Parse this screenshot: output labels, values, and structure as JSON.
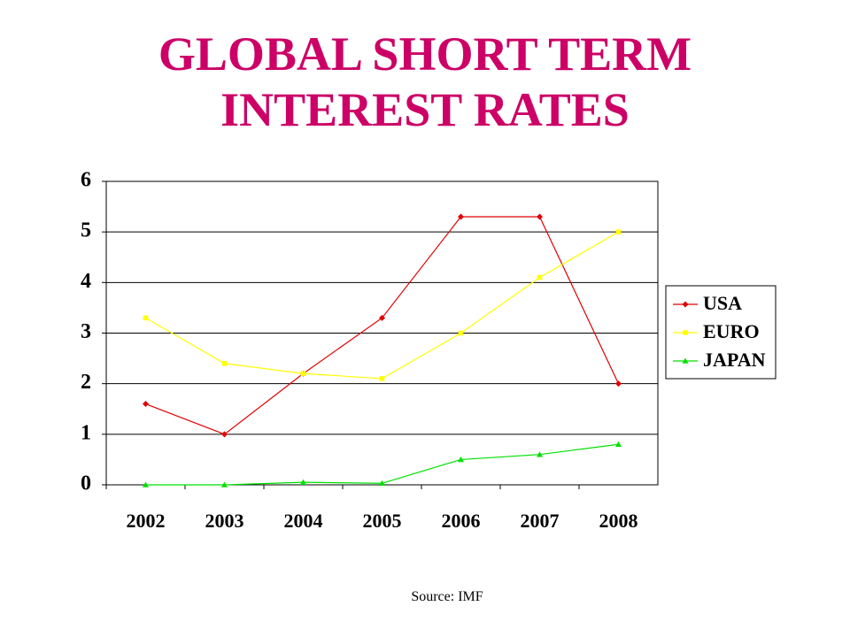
{
  "chart_data": {
    "type": "line",
    "title": "GLOBAL SHORT TERM INTEREST RATES",
    "source": "Source: IMF",
    "categories": [
      "2002",
      "2003",
      "2004",
      "2005",
      "2006",
      "2007",
      "2008"
    ],
    "series": [
      {
        "name": "USA",
        "color": "#e00000",
        "marker": "diamond",
        "values": [
          1.6,
          1.0,
          2.2,
          3.3,
          5.3,
          5.3,
          2.0
        ]
      },
      {
        "name": "EURO",
        "color": "#ffff00",
        "marker": "square",
        "values": [
          3.3,
          2.4,
          2.2,
          2.1,
          3.0,
          4.1,
          5.0
        ]
      },
      {
        "name": "JAPAN",
        "color": "#00e000",
        "marker": "triangle",
        "values": [
          0,
          0,
          0.05,
          0.03,
          0.5,
          0.6,
          0.8
        ]
      }
    ],
    "ylim": [
      0,
      6
    ],
    "yticks": [
      0,
      1,
      2,
      3,
      4,
      5,
      6
    ],
    "grid": true,
    "legend": "right"
  }
}
